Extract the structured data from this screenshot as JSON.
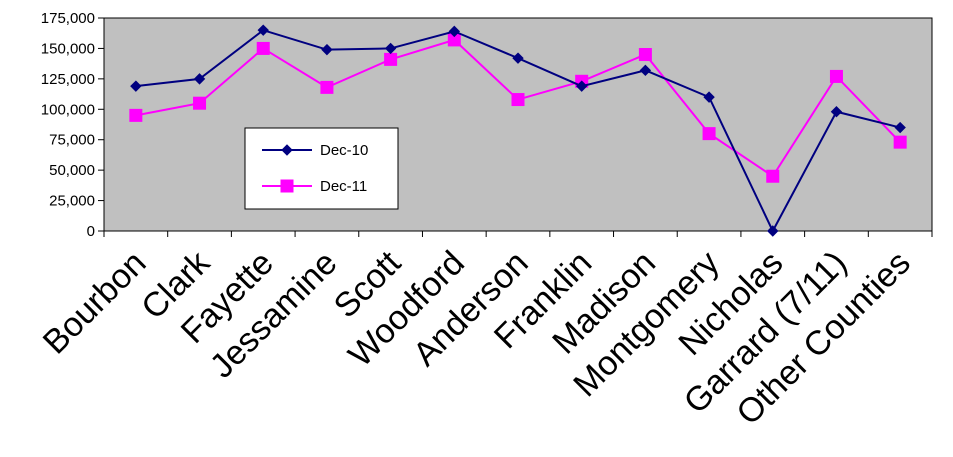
{
  "chart_data": {
    "type": "line",
    "title": "",
    "xlabel": "",
    "ylabel": "",
    "categories": [
      "Bourbon",
      "Clark",
      "Fayette",
      "Jessamine",
      "Scott",
      "Woodford",
      "Anderson",
      "Franklin",
      "Madison",
      "Montgomery",
      "Nicholas",
      "Garrard (7/11)",
      "Other Counties"
    ],
    "ylim": [
      0,
      175000
    ],
    "yticks": [
      0,
      25000,
      50000,
      75000,
      100000,
      125000,
      150000,
      175000
    ],
    "ytick_labels": [
      "0",
      "25,000",
      "50,000",
      "75,000",
      "100,000",
      "125,000",
      "150,000",
      "175,000"
    ],
    "grid": false,
    "plot_background": "#c0c0c0",
    "legend": {
      "placement": "inside-left"
    },
    "series": [
      {
        "name": "Dec-10",
        "color": "#000080",
        "marker": "diamond",
        "values": [
          119000,
          125000,
          165000,
          149000,
          150000,
          164000,
          142000,
          119000,
          132000,
          110000,
          0,
          98000,
          85000
        ]
      },
      {
        "name": "Dec-11",
        "color": "#ff00ff",
        "marker": "square",
        "values": [
          95000,
          105000,
          150000,
          118000,
          141000,
          157000,
          108000,
          123000,
          145000,
          80000,
          45000,
          127000,
          73000
        ]
      }
    ]
  }
}
